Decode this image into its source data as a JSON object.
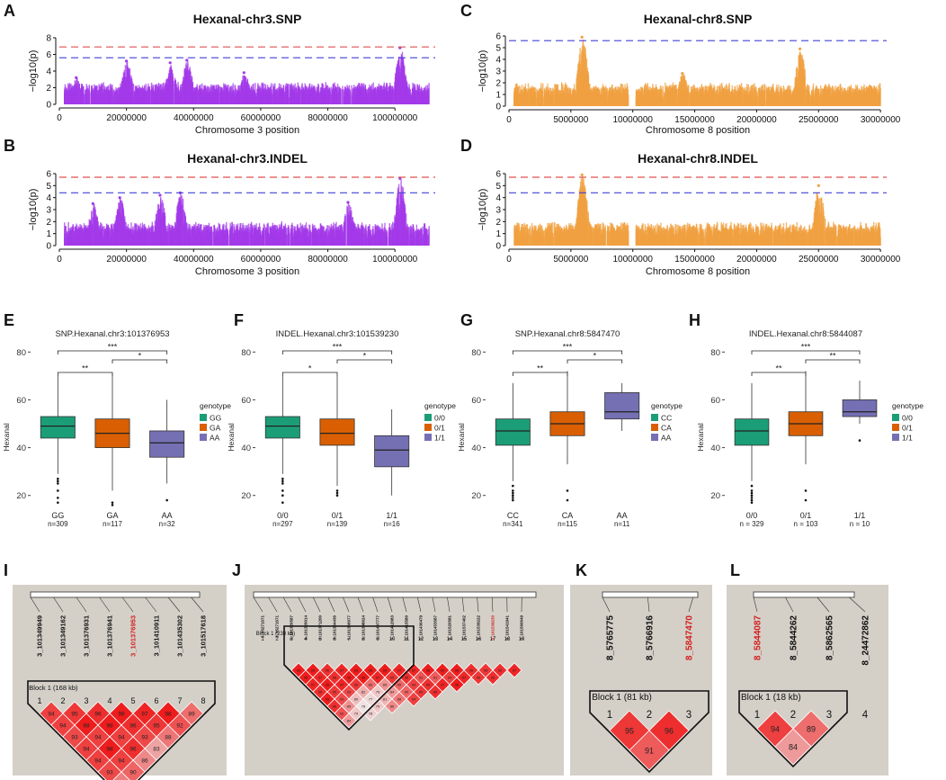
{
  "figure": {
    "panel_letters": [
      "A",
      "B",
      "C",
      "D",
      "E",
      "F",
      "G",
      "H",
      "I",
      "J",
      "K",
      "L"
    ]
  },
  "colors": {
    "purple": "#a339e8",
    "orange": "#f0a040",
    "red_line": "#e05050",
    "blue_line": "#4040d8",
    "box_green": "#1b9e77",
    "box_orange": "#d95f02",
    "box_purple": "#7570b3",
    "ld_red": "#ee1c1c",
    "ld_bg": "#d4d0c8",
    "highlight": "#d42020"
  },
  "chart_data": [
    {
      "type": "scatter",
      "panel": "A",
      "title": "Hexanal-chr3.SNP",
      "xlabel": "Chromosome 3 position",
      "ylabel": "−log10(p)",
      "xlim": [
        0,
        112000000
      ],
      "ylim": [
        0,
        8
      ],
      "xticks": [
        0,
        20000000,
        40000000,
        60000000,
        80000000,
        100000000
      ],
      "xtick_labels": [
        "0",
        "20000000",
        "40000000",
        "60000000",
        "80000000",
        "100000000"
      ],
      "yticks": [
        0,
        2,
        4,
        6,
        8
      ],
      "ytick_labels": [
        "0",
        "2",
        "4",
        "6",
        "8"
      ],
      "thresholds": [
        {
          "name": "red",
          "value": 6.9
        },
        {
          "name": "blue",
          "value": 5.6
        }
      ],
      "peaks": [
        [
          5000000,
          3.2
        ],
        [
          20000000,
          5.2
        ],
        [
          33000000,
          5.0
        ],
        [
          38000000,
          5.3
        ],
        [
          55000000,
          3.8
        ],
        [
          101500000,
          6.8
        ]
      ],
      "color": "purple"
    },
    {
      "type": "scatter",
      "panel": "B",
      "title": "Hexanal-chr3.INDEL",
      "xlabel": "Chromosome 3 position",
      "ylabel": "−log10(p)",
      "xlim": [
        0,
        112000000
      ],
      "ylim": [
        0,
        6
      ],
      "xticks": [
        0,
        20000000,
        40000000,
        60000000,
        80000000,
        100000000
      ],
      "xtick_labels": [
        "0",
        "20000000",
        "40000000",
        "60000000",
        "80000000",
        "100000000"
      ],
      "yticks": [
        0,
        1,
        2,
        3,
        4,
        5,
        6
      ],
      "ytick_labels": [
        "0",
        "1",
        "2",
        "3",
        "4",
        "5",
        "6"
      ],
      "thresholds": [
        {
          "name": "red",
          "value": 5.7
        },
        {
          "name": "blue",
          "value": 4.4
        }
      ],
      "peaks": [
        [
          10000000,
          3.5
        ],
        [
          18000000,
          4.0
        ],
        [
          30000000,
          4.2
        ],
        [
          36000000,
          4.4
        ],
        [
          86000000,
          3.6
        ],
        [
          101500000,
          5.6
        ]
      ],
      "color": "purple"
    },
    {
      "type": "scatter",
      "panel": "C",
      "title": "Hexanal-chr8.SNP",
      "xlabel": "Chromosome 8 position",
      "ylabel": "−log10(p)",
      "xlim": [
        0,
        30500000
      ],
      "ylim": [
        0,
        6
      ],
      "xticks": [
        0,
        5000000,
        10000000,
        15000000,
        20000000,
        25000000,
        30000000
      ],
      "xtick_labels": [
        "0",
        "5000000",
        "10000000",
        "15000000",
        "20000000",
        "25000000",
        "30000000"
      ],
      "yticks": [
        0,
        1,
        2,
        3,
        4,
        5,
        6
      ],
      "ytick_labels": [
        "0",
        "1",
        "2",
        "3",
        "4",
        "5",
        "6"
      ],
      "thresholds": [
        {
          "name": "blue",
          "value": 5.6
        }
      ],
      "peaks": [
        [
          5900000,
          5.9
        ],
        [
          23500000,
          4.9
        ],
        [
          14000000,
          2.8
        ]
      ],
      "color": "orange"
    },
    {
      "type": "scatter",
      "panel": "D",
      "title": "Hexanal-chr8.INDEL",
      "xlabel": "Chromosome 8 position",
      "ylabel": "−log10(p)",
      "xlim": [
        0,
        30500000
      ],
      "ylim": [
        0,
        6
      ],
      "xticks": [
        0,
        5000000,
        10000000,
        15000000,
        20000000,
        25000000,
        30000000
      ],
      "xtick_labels": [
        "0",
        "5000000",
        "10000000",
        "15000000",
        "20000000",
        "25000000",
        "30000000"
      ],
      "yticks": [
        0,
        1,
        2,
        3,
        4,
        5,
        6
      ],
      "ytick_labels": [
        "0",
        "1",
        "2",
        "3",
        "4",
        "5",
        "6"
      ],
      "thresholds": [
        {
          "name": "red",
          "value": 5.7
        },
        {
          "name": "blue",
          "value": 4.4
        }
      ],
      "peaks": [
        [
          5900000,
          5.9
        ],
        [
          25000000,
          5.0
        ]
      ],
      "color": "orange"
    },
    {
      "type": "box",
      "panel": "E",
      "title": "SNP.Hexanal.chr3:101376953",
      "ylabel": "Hexanal",
      "ylim": [
        15,
        85
      ],
      "yticks": [
        20,
        40,
        60,
        80
      ],
      "ytick_labels": [
        "20",
        "40",
        "60",
        "80"
      ],
      "categories": [
        "GG",
        "GA",
        "AA"
      ],
      "counts": [
        "n=309",
        "n=117",
        "n=32"
      ],
      "legend_title": "genotype",
      "legend_labels": [
        "GG",
        "GA",
        "AA"
      ],
      "boxes": [
        {
          "q1": 44,
          "median": 49,
          "q3": 53,
          "lo": 29,
          "hi": 70,
          "outliers": [
            27,
            26,
            25,
            22,
            19,
            17
          ]
        },
        {
          "q1": 40,
          "median": 46,
          "q3": 52,
          "lo": 22,
          "hi": 71,
          "outliers": [
            17,
            16
          ]
        },
        {
          "q1": 36,
          "median": 42,
          "q3": 47,
          "lo": 25,
          "hi": 60,
          "outliers": [
            18
          ]
        }
      ],
      "comparisons": [
        {
          "pair": [
            1,
            2
          ],
          "label": "**"
        },
        {
          "pair": [
            1,
            3
          ],
          "label": "***"
        },
        {
          "pair": [
            2,
            3
          ],
          "label": "*"
        }
      ]
    },
    {
      "type": "box",
      "panel": "F",
      "title": "INDEL.Hexanal.chr3:101539230",
      "ylabel": "Hexanal",
      "ylim": [
        15,
        85
      ],
      "yticks": [
        20,
        40,
        60,
        80
      ],
      "ytick_labels": [
        "20",
        "40",
        "60",
        "80"
      ],
      "categories": [
        "0/0",
        "0/1",
        "1/1"
      ],
      "counts": [
        "n=297",
        "n=139",
        "n=16"
      ],
      "legend_title": "genotype",
      "legend_labels": [
        "0/0",
        "0/1",
        "1/1"
      ],
      "boxes": [
        {
          "q1": 44,
          "median": 49,
          "q3": 53,
          "lo": 29,
          "hi": 70,
          "outliers": [
            27,
            26,
            25,
            22,
            20,
            17
          ]
        },
        {
          "q1": 41,
          "median": 46,
          "q3": 52,
          "lo": 24,
          "hi": 70,
          "outliers": [
            22,
            21,
            20
          ]
        },
        {
          "q1": 32,
          "median": 39,
          "q3": 45,
          "lo": 20,
          "hi": 56,
          "outliers": []
        }
      ],
      "comparisons": [
        {
          "pair": [
            1,
            2
          ],
          "label": "*"
        },
        {
          "pair": [
            1,
            3
          ],
          "label": "***"
        },
        {
          "pair": [
            2,
            3
          ],
          "label": "*"
        }
      ]
    },
    {
      "type": "box",
      "panel": "G",
      "title": "SNP.Hexanal.chr8:5847470",
      "ylabel": "Hexanal",
      "ylim": [
        15,
        85
      ],
      "yticks": [
        20,
        40,
        60,
        80
      ],
      "ytick_labels": [
        "20",
        "40",
        "60",
        "80"
      ],
      "categories": [
        "CC",
        "CA",
        "AA"
      ],
      "counts": [
        "n=341",
        "n=115",
        "n=11"
      ],
      "legend_title": "genotype",
      "legend_labels": [
        "CC",
        "CA",
        "AA"
      ],
      "boxes": [
        {
          "q1": 41,
          "median": 47,
          "q3": 52,
          "lo": 26,
          "hi": 67,
          "outliers": [
            24,
            22,
            21,
            20,
            19,
            18
          ]
        },
        {
          "q1": 45,
          "median": 50,
          "q3": 55,
          "lo": 33,
          "hi": 72,
          "outliers": [
            22,
            18
          ]
        },
        {
          "q1": 52,
          "median": 55,
          "q3": 63,
          "lo": 47,
          "hi": 67,
          "outliers": []
        }
      ],
      "comparisons": [
        {
          "pair": [
            1,
            2
          ],
          "label": "**"
        },
        {
          "pair": [
            1,
            3
          ],
          "label": "***"
        },
        {
          "pair": [
            2,
            3
          ],
          "label": "*"
        }
      ]
    },
    {
      "type": "box",
      "panel": "H",
      "title": "INDEL.Hexanal.chr8:5844087",
      "ylabel": "Hexanal",
      "ylim": [
        15,
        85
      ],
      "yticks": [
        20,
        40,
        60,
        80
      ],
      "ytick_labels": [
        "20",
        "40",
        "60",
        "80"
      ],
      "categories": [
        "0/0",
        "0/1",
        "1/1"
      ],
      "counts": [
        "n = 329",
        "n = 103",
        "n = 10"
      ],
      "legend_title": "genotype",
      "legend_labels": [
        "0/0",
        "0/1",
        "1/1"
      ],
      "boxes": [
        {
          "q1": 41,
          "median": 47,
          "q3": 52,
          "lo": 26,
          "hi": 67,
          "outliers": [
            24,
            22,
            21,
            20,
            19,
            18,
            17
          ]
        },
        {
          "q1": 45,
          "median": 50,
          "q3": 55,
          "lo": 33,
          "hi": 72,
          "outliers": [
            22,
            18
          ]
        },
        {
          "q1": 53,
          "median": 55,
          "q3": 60,
          "lo": 50,
          "hi": 68,
          "outliers": [
            43
          ]
        }
      ],
      "comparisons": [
        {
          "pair": [
            1,
            2
          ],
          "label": "**"
        },
        {
          "pair": [
            1,
            3
          ],
          "label": "***"
        },
        {
          "pair": [
            2,
            3
          ],
          "label": "**"
        }
      ]
    },
    {
      "type": "heatmap",
      "panel": "I",
      "markers": [
        "3_101349949",
        "3_101349162",
        "3_101376931",
        "3_101376941",
        "3_101376953",
        "3_101410911",
        "3_101435302",
        "3_101517618"
      ],
      "highlight_index": 4,
      "marker_numbers": [
        "1",
        "2",
        "3",
        "4",
        "5",
        "6",
        "7",
        "8"
      ],
      "block_label": "Block 1 (168 kb)",
      "ld_values": [
        [
          "94",
          "95",
          "96",
          "98",
          "97",
          "98",
          "89"
        ],
        [
          "94",
          "98",
          "98",
          "96",
          "95",
          "92"
        ],
        [
          "93",
          "94",
          "94",
          "93",
          "88"
        ],
        [
          "94",
          "98",
          "96",
          "83"
        ],
        [
          "94",
          "94",
          "86"
        ],
        [
          "93",
          "90"
        ],
        [
          "87"
        ]
      ]
    },
    {
      "type": "heatmap",
      "panel": "J",
      "markers": [
        "3_95271671",
        "3_95271671",
        "3_101320587",
        "3_101326014",
        "3_101371200",
        "3_101364436",
        "3_101366077",
        "3_101398624",
        "3_101407777",
        "3_101412083",
        "3_101415580",
        "3_101430479",
        "3_101453587",
        "3_101520581",
        "3_101537402",
        "3_101539222",
        "3_101539230",
        "3_101541941",
        "3_101560649"
      ],
      "highlight_index": 16,
      "marker_numbers": [
        "1",
        "2",
        "3",
        "4",
        "5",
        "6",
        "7",
        "8",
        "9",
        "10",
        "11",
        "12",
        "13",
        "14",
        "15",
        "16",
        "17",
        "18",
        "19"
      ],
      "block_label": "Block 1 (238 kb)",
      "ld_values": [
        [
          "98",
          "98",
          "96",
          "97",
          "99",
          "98",
          "98",
          "97",
          "97",
          "98",
          "99",
          "98",
          "96",
          "95",
          "96",
          "97"
        ],
        [
          "98",
          "97",
          "96",
          "98",
          "98",
          "97",
          "95",
          "96",
          "92",
          "91",
          "94",
          "97",
          "95",
          "96"
        ],
        [
          "97",
          "98",
          "97",
          "95",
          "89",
          "85",
          "90",
          "94",
          "96",
          "97",
          "98"
        ],
        [
          "96",
          "95",
          "93",
          "82",
          "79",
          "84",
          "90",
          "95",
          "96"
        ],
        [
          "98",
          "93",
          "80",
          "77",
          "81",
          "88",
          "94"
        ],
        [
          "96",
          "85",
          "76",
          "79",
          "86"
        ],
        [
          "92",
          "79",
          "78"
        ],
        [
          "84"
        ]
      ]
    },
    {
      "type": "heatmap",
      "panel": "K",
      "markers": [
        "8_5765775",
        "8_5766916",
        "8_5847470"
      ],
      "highlight_index": 2,
      "marker_numbers": [
        "1",
        "2",
        "3"
      ],
      "block_label": "Block 1 (81 kb)",
      "ld_values": [
        [
          "95",
          "96"
        ],
        [
          "91"
        ]
      ]
    },
    {
      "type": "heatmap",
      "panel": "L",
      "markers": [
        "8_5844087",
        "8_5844262",
        "8_5862565",
        "8_24472862"
      ],
      "highlight_index": 0,
      "marker_numbers": [
        "1",
        "2",
        "3",
        "4"
      ],
      "block_label": "Block 1 (18 kb)",
      "ld_values": [
        [
          "94",
          "89"
        ],
        [
          "84"
        ]
      ]
    }
  ]
}
